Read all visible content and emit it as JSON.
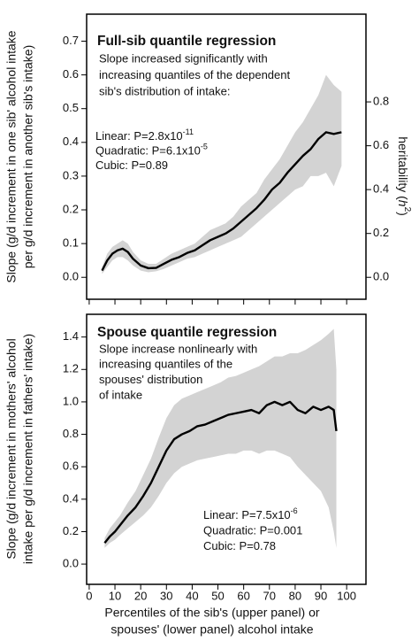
{
  "chart_data": [
    {
      "type": "line",
      "title": "Full-sib quantile regression",
      "notes": [
        "Slope increased significantly with",
        "increasing quantiles of the dependent",
        "sib's distribution of intake:"
      ],
      "stats": [
        {
          "text": "Linear: P=2.8x10",
          "sup": "-11"
        },
        {
          "text": "Quadratic: P=6.1x10",
          "sup": "-5"
        },
        {
          "text": "Cubic: P=0.89"
        }
      ],
      "ylabel": [
        "Slope (g/d increment in one sib' alcohol intake",
        "per g/d increment in another sib's intake)"
      ],
      "y2label": [
        "heritability (",
        "h",
        "2",
        ")"
      ],
      "x": [
        5,
        7,
        9,
        11,
        13,
        15,
        17,
        20,
        23,
        26,
        29,
        32,
        35,
        38,
        41,
        44,
        47,
        50,
        53,
        56,
        59,
        62,
        65,
        68,
        71,
        74,
        77,
        80,
        83,
        86,
        89,
        92,
        95,
        98
      ],
      "values": [
        0.02,
        0.05,
        0.07,
        0.08,
        0.085,
        0.075,
        0.055,
        0.035,
        0.027,
        0.028,
        0.04,
        0.052,
        0.06,
        0.072,
        0.08,
        0.095,
        0.11,
        0.12,
        0.13,
        0.145,
        0.165,
        0.185,
        0.205,
        0.23,
        0.26,
        0.28,
        0.31,
        0.335,
        0.36,
        0.38,
        0.41,
        0.43,
        0.425,
        0.43
      ],
      "lower": [
        0.01,
        0.03,
        0.05,
        0.06,
        0.06,
        0.05,
        0.035,
        0.02,
        0.015,
        0.018,
        0.025,
        0.035,
        0.045,
        0.055,
        0.06,
        0.07,
        0.08,
        0.09,
        0.1,
        0.11,
        0.12,
        0.14,
        0.16,
        0.18,
        0.2,
        0.22,
        0.24,
        0.26,
        0.27,
        0.3,
        0.3,
        0.31,
        0.27,
        0.33
      ],
      "upper": [
        0.03,
        0.07,
        0.09,
        0.1,
        0.11,
        0.1,
        0.075,
        0.05,
        0.04,
        0.04,
        0.055,
        0.07,
        0.08,
        0.09,
        0.1,
        0.12,
        0.14,
        0.15,
        0.16,
        0.18,
        0.21,
        0.23,
        0.25,
        0.29,
        0.32,
        0.35,
        0.39,
        0.43,
        0.46,
        0.5,
        0.54,
        0.6,
        0.57,
        0.55
      ],
      "color": "#000000",
      "band_color": "#d3d3d3",
      "xlim": [
        -1,
        107.5
      ],
      "xticks": [
        0,
        10,
        20,
        30,
        40,
        50,
        60,
        70,
        80,
        90,
        100
      ],
      "ylim": [
        -0.065,
        0.78
      ],
      "yticks": [
        {
          "value": 0,
          "label": "0.0"
        },
        0.1,
        0.2,
        0.3,
        0.4,
        0.5,
        0.6,
        0.7
      ],
      "y2lim": [
        -0.1,
        1.2
      ],
      "y2ticks": [
        {
          "value": 0,
          "label": "0.0"
        },
        0.2,
        0.4,
        0.6,
        0.8
      ]
    },
    {
      "type": "line",
      "title": "Spouse quantile regression",
      "notes": [
        "Slope increase nonlinearly with",
        "increasing quantiles of the",
        "spouses' distribution",
        "of intake"
      ],
      "stats": [
        {
          "text": "Linear: P=7.5x10",
          "sup": "-6"
        },
        {
          "text": "Quadratic: P=0.001"
        },
        {
          "text": "Cubic: P=0.78"
        }
      ],
      "ylabel": [
        "Slope (g/d increment in mothers' alcohol",
        "intake per g/d increment in fathers' intake)"
      ],
      "xlabel": [
        "Percentiles of the sib's (upper panel) or",
        "spouses' (lower panel) alcohol intake"
      ],
      "x": [
        6,
        8,
        10,
        12,
        15,
        18,
        21,
        24,
        27,
        30,
        33,
        36,
        39,
        42,
        45,
        48,
        51,
        54,
        57,
        60,
        63,
        66,
        69,
        72,
        75,
        78,
        81,
        84,
        87,
        90,
        93,
        95,
        96
      ],
      "values": [
        0.13,
        0.17,
        0.2,
        0.24,
        0.3,
        0.35,
        0.42,
        0.5,
        0.6,
        0.7,
        0.77,
        0.8,
        0.82,
        0.85,
        0.86,
        0.88,
        0.9,
        0.92,
        0.93,
        0.94,
        0.95,
        0.93,
        0.98,
        1.0,
        0.98,
        1.0,
        0.95,
        0.93,
        0.97,
        0.95,
        0.97,
        0.95,
        0.82
      ],
      "lower": [
        0.1,
        0.13,
        0.15,
        0.18,
        0.22,
        0.26,
        0.3,
        0.35,
        0.42,
        0.5,
        0.56,
        0.6,
        0.62,
        0.64,
        0.65,
        0.66,
        0.67,
        0.68,
        0.68,
        0.7,
        0.7,
        0.68,
        0.7,
        0.7,
        0.68,
        0.66,
        0.6,
        0.55,
        0.5,
        0.45,
        0.35,
        0.2,
        0.1
      ],
      "upper": [
        0.16,
        0.22,
        0.26,
        0.3,
        0.38,
        0.45,
        0.55,
        0.65,
        0.78,
        0.9,
        0.98,
        1.02,
        1.04,
        1.06,
        1.08,
        1.1,
        1.12,
        1.15,
        1.16,
        1.18,
        1.2,
        1.22,
        1.25,
        1.28,
        1.28,
        1.3,
        1.3,
        1.32,
        1.35,
        1.38,
        1.42,
        1.45,
        1.2
      ],
      "color": "#000000",
      "band_color": "#d3d3d3",
      "xlim": [
        -1,
        107.5
      ],
      "xticks": [
        0,
        10,
        20,
        30,
        40,
        50,
        60,
        70,
        80,
        90,
        100
      ],
      "ylim": [
        -0.125,
        1.54
      ],
      "yticks": [
        {
          "value": 0,
          "label": "0.0"
        },
        0.2,
        0.4,
        0.6,
        0.8,
        {
          "value": 1,
          "label": "1.0"
        },
        1.2,
        1.4
      ]
    }
  ]
}
